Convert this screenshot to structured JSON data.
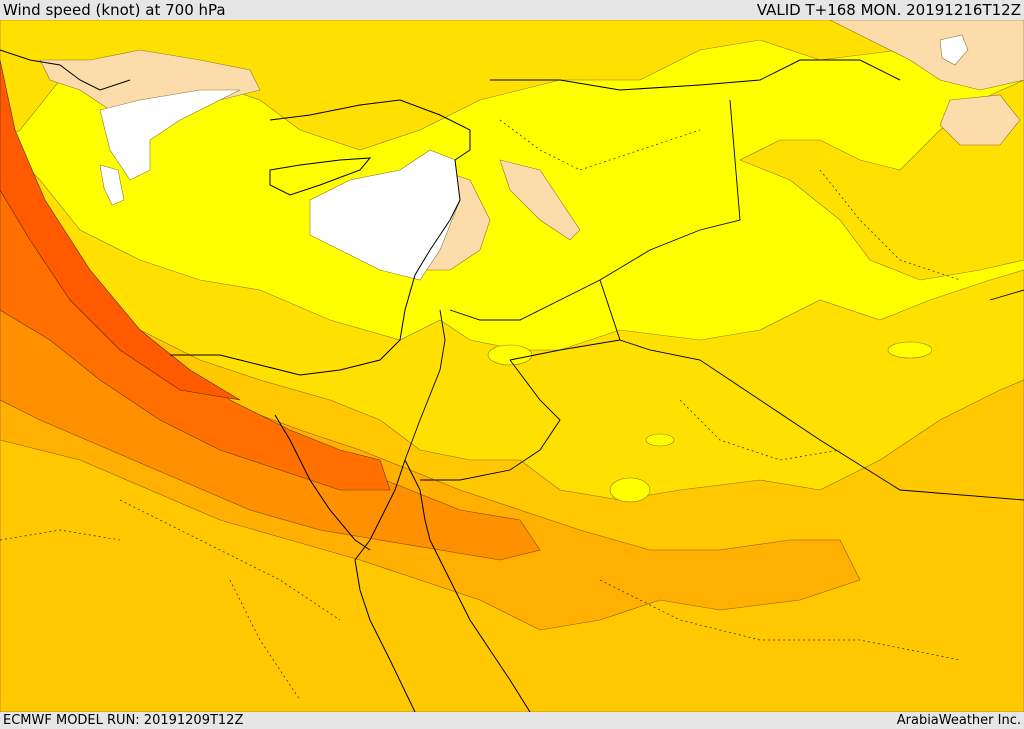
{
  "header": {
    "title": "Wind speed (knot) at 700 hPa",
    "valid": "VALID T+168 MON. 20191216T12Z"
  },
  "footer": {
    "model_run": "ECMWF MODEL RUN: 20191209T12Z",
    "credit": "ArabiaWeather Inc."
  },
  "colors": {
    "background_sea_land": "#ffff00",
    "white_calm": "#ffffff",
    "peach_low": "#fbdcaa",
    "light_yellow": "#ffe000",
    "gold": "#ffc800",
    "light_orange": "#ffb000",
    "orange": "#ff9000",
    "dark_orange": "#ff7000",
    "red_orange": "#ff5a00",
    "border_line": "#000000"
  }
}
